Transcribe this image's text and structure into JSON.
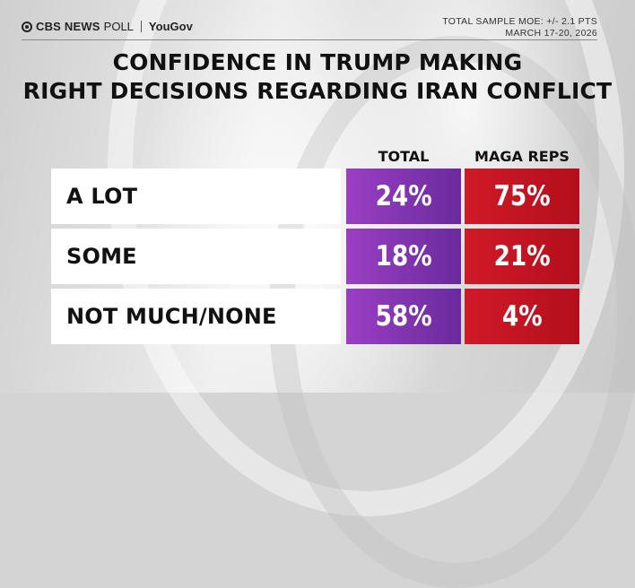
{
  "header": {
    "brand_cbs": "CBS NEWS",
    "brand_poll": "POLL",
    "brand_partner": "YouGov",
    "moe_line": "TOTAL SAMPLE MOE: +/- 2.1 PTS",
    "date_line": "MARCH 17-20, 2026"
  },
  "chart_data": {
    "type": "table",
    "title": "CONFIDENCE IN TRUMP MAKING RIGHT DECISIONS REGARDING IRAN CONFLICT",
    "title_line1": "CONFIDENCE IN TRUMP MAKING",
    "title_line2": "RIGHT DECISIONS REGARDING IRAN CONFLICT",
    "columns": [
      "TOTAL",
      "MAGA REPS"
    ],
    "rows": [
      {
        "label": "A LOT",
        "total": "24%",
        "maga": "75%"
      },
      {
        "label": "SOME",
        "total": "18%",
        "maga": "21%"
      },
      {
        "label": "NOT MUCH/NONE",
        "total": "58%",
        "maga": "4%"
      }
    ],
    "values_total": [
      24,
      18,
      58
    ],
    "values_maga": [
      75,
      21,
      4
    ]
  },
  "colors": {
    "total": "#8a36b8",
    "maga": "#c8142a"
  }
}
